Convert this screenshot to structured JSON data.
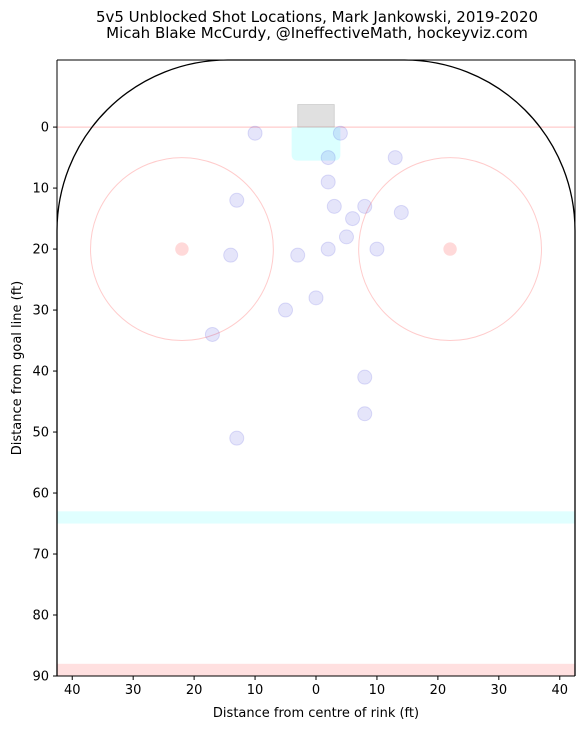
{
  "chart_data": {
    "type": "scatter",
    "title": "5v5 Unblocked Shot Locations, Mark Jankowski, 2019-2020",
    "subtitle": "Micah Blake McCurdy, @IneffectiveMath, hockeyviz.com",
    "xlabel": "Distance from centre of rink (ft)",
    "ylabel": "Distance from goal line (ft)",
    "xlim": [
      42.5,
      -42.5
    ],
    "ylim": [
      90,
      -11
    ],
    "x_ticks": [
      40,
      30,
      20,
      10,
      0,
      10,
      20,
      30,
      40
    ],
    "y_ticks": [
      0,
      10,
      20,
      30,
      40,
      50,
      60,
      70,
      80,
      90
    ],
    "grid": false,
    "point_color": "#0000cc",
    "rink_colors": {
      "goal_line": "#ffcccc",
      "crease": "#ccffff",
      "net": "#999999",
      "faceoff_circle": "#ffcccc",
      "faceoff_dot": "#ff6666",
      "blue_line": "#ccffff",
      "red_line": "#ffcccc",
      "boards": "#000000"
    },
    "series": [
      {
        "points": [
          {
            "x": 10,
            "y": 1
          },
          {
            "x": -4,
            "y": 1
          },
          {
            "x": -2,
            "y": 5
          },
          {
            "x": -13,
            "y": 5
          },
          {
            "x": -2,
            "y": 9
          },
          {
            "x": 13,
            "y": 12
          },
          {
            "x": -3,
            "y": 13
          },
          {
            "x": -8,
            "y": 13
          },
          {
            "x": -14,
            "y": 14
          },
          {
            "x": -6,
            "y": 15
          },
          {
            "x": -5,
            "y": 18
          },
          {
            "x": -2,
            "y": 20
          },
          {
            "x": -10,
            "y": 20
          },
          {
            "x": 14,
            "y": 21
          },
          {
            "x": 3,
            "y": 21
          },
          {
            "x": 0,
            "y": 28
          },
          {
            "x": 5,
            "y": 30
          },
          {
            "x": 17,
            "y": 34
          },
          {
            "x": -8,
            "y": 41
          },
          {
            "x": -8,
            "y": 47
          },
          {
            "x": 13,
            "y": 51
          }
        ]
      }
    ]
  }
}
